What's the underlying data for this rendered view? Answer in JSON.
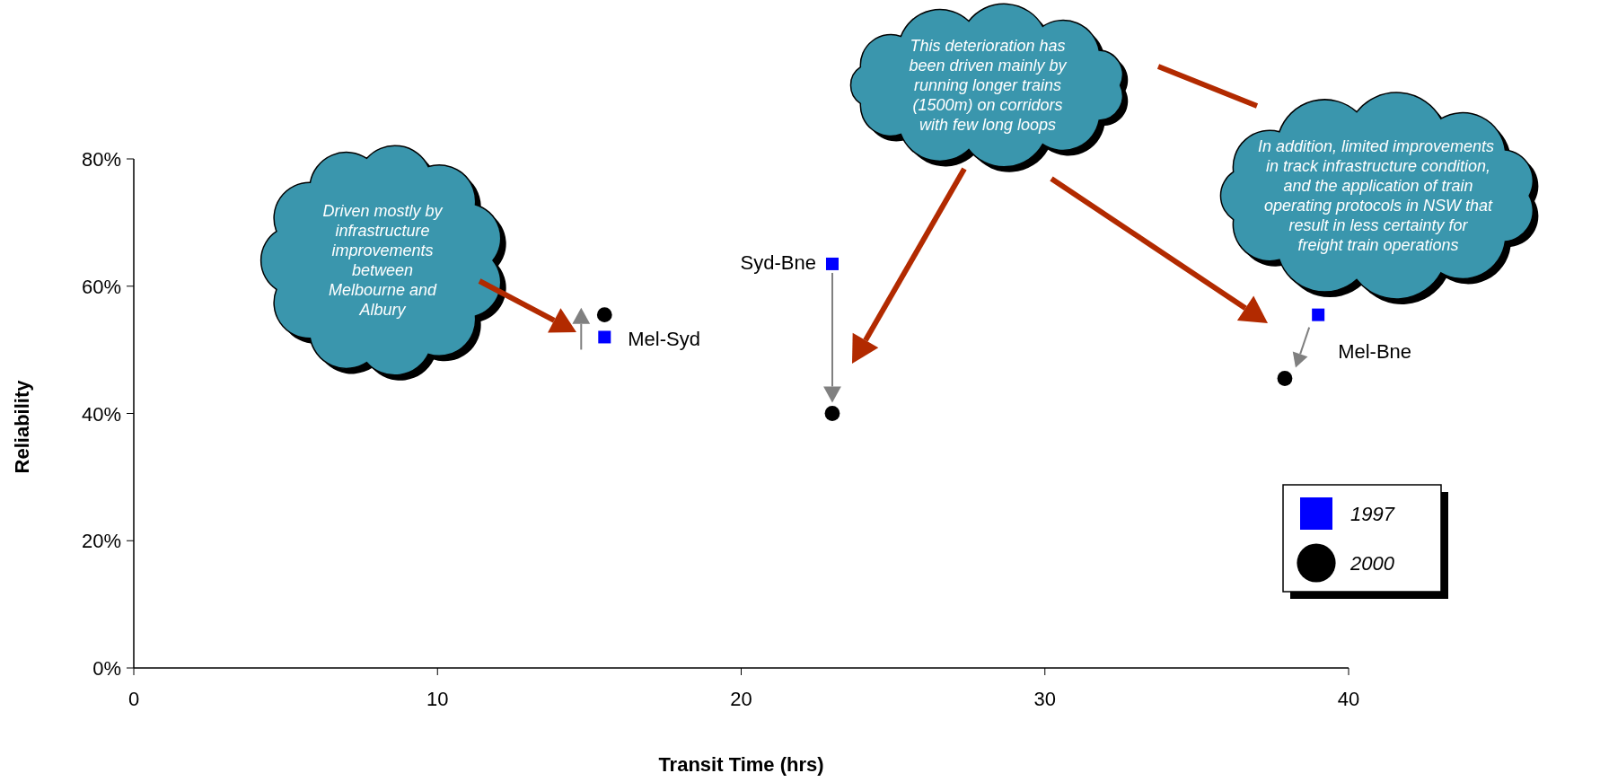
{
  "chart_data": {
    "type": "scatter",
    "xlabel": "Transit Time (hrs)",
    "ylabel": "Reliability",
    "xlim": [
      0,
      40
    ],
    "xticks": [
      0,
      10,
      20,
      30,
      40
    ],
    "ylim": [
      0,
      80
    ],
    "yticks": [
      {
        "value": 0,
        "label": "0%"
      },
      {
        "value": 20,
        "label": "20%"
      },
      {
        "value": 40,
        "label": "40%"
      },
      {
        "value": 60,
        "label": "60%"
      },
      {
        "value": 80,
        "label": "80%"
      }
    ],
    "grid": false,
    "legend": "bottom right",
    "series": [
      {
        "name": "1997",
        "color": "#0000ff",
        "marker": "square",
        "x": [
          15.5,
          23,
          39
        ],
        "values": [
          52,
          63.5,
          55.5
        ]
      },
      {
        "name": "2000",
        "color": "#000000",
        "marker": "circle",
        "x": [
          15.5,
          23,
          37.9
        ],
        "values": [
          55.5,
          40,
          45.5
        ]
      }
    ],
    "annotations": [
      {
        "text": "Mel-Syd",
        "x": 15.5,
        "y": 52
      },
      {
        "text": "Syd-Bne",
        "x": 23,
        "y": 63.5
      },
      {
        "text": "Mel-Bne",
        "x": 39,
        "y": 55.5
      },
      "Driven mostly by infrastructure improvements between Melbourne and Albury",
      "This deterioration has been driven mainly by running longer trains (1500m) on corridors with few long loops",
      "In addition, limited improvements  in track infrastructure condition, and the application of train operating protocols in NSW that result in less certainty for freight train operations"
    ]
  }
}
